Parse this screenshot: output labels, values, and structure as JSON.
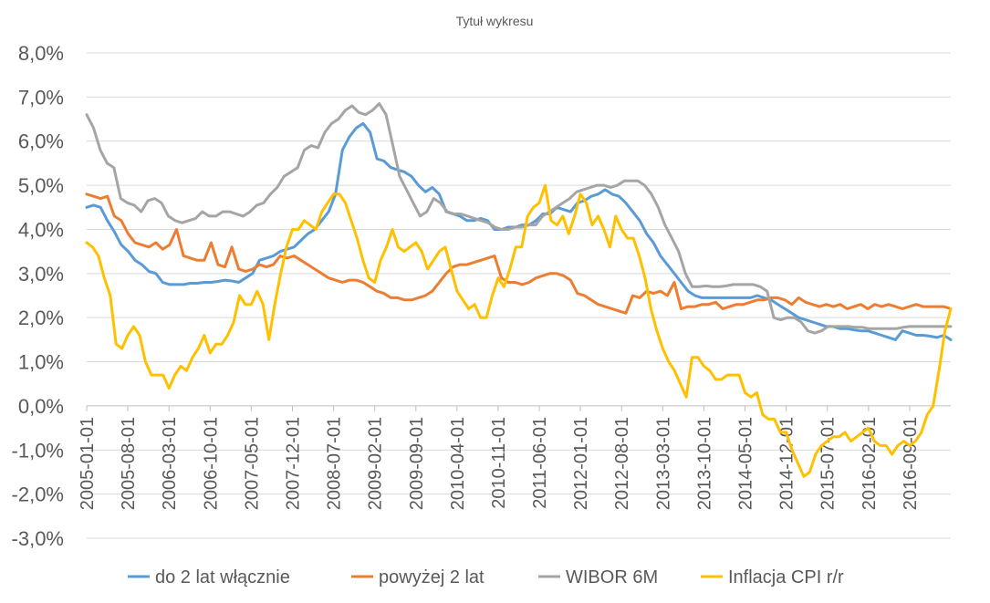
{
  "chart_data": {
    "type": "line",
    "title": "Tytuł wykresu",
    "xlabel": "",
    "ylabel": "",
    "ylim": [
      -3,
      8
    ],
    "yticks": [
      "-3,0%",
      "-2,0%",
      "-1,0%",
      "0,0%",
      "1,0%",
      "2,0%",
      "3,0%",
      "4,0%",
      "5,0%",
      "6,0%",
      "7,0%",
      "8,0%"
    ],
    "xticks": [
      "2005-01-01",
      "2005-08-01",
      "2006-03-01",
      "2006-10-01",
      "2007-05-01",
      "2007-12-01",
      "2008-07-01",
      "2009-02-01",
      "2009-09-01",
      "2010-04-01",
      "2010-11-01",
      "2011-06-01",
      "2012-01-01",
      "2012-08-01",
      "2013-03-01",
      "2013-10-01",
      "2014-05-01",
      "2014-12-01",
      "2015-07-01",
      "2016-02-01",
      "2016-09-01"
    ],
    "x_start": "2005-01",
    "x_end": "2017-04",
    "grid": true,
    "legend_position": "bottom",
    "colors": [
      "#5b9bd5",
      "#ed7d31",
      "#a5a5a5",
      "#ffc000"
    ],
    "series": [
      {
        "name": "do 2 lat włącznie",
        "values": [
          4.5,
          4.55,
          4.5,
          4.2,
          3.95,
          3.65,
          3.5,
          3.3,
          3.2,
          3.05,
          3.0,
          2.8,
          2.75,
          2.75,
          2.75,
          2.78,
          2.78,
          2.8,
          2.8,
          2.82,
          2.85,
          2.83,
          2.8,
          2.9,
          3.0,
          3.3,
          3.35,
          3.4,
          3.5,
          3.55,
          3.6,
          3.75,
          3.9,
          4.0,
          4.2,
          4.4,
          4.8,
          5.8,
          6.1,
          6.3,
          6.4,
          6.2,
          5.6,
          5.55,
          5.4,
          5.35,
          5.3,
          5.2,
          5.0,
          4.85,
          4.95,
          4.8,
          4.4,
          4.35,
          4.3,
          4.2,
          4.2,
          4.25,
          4.2,
          4.0,
          4.0,
          4.05,
          4.05,
          4.1,
          4.1,
          4.2,
          4.35,
          4.35,
          4.5,
          4.45,
          4.4,
          4.6,
          4.65,
          4.75,
          4.8,
          4.9,
          4.8,
          4.75,
          4.6,
          4.4,
          4.2,
          3.9,
          3.7,
          3.4,
          3.2,
          3.0,
          2.8,
          2.6,
          2.5,
          2.45,
          2.45,
          2.45,
          2.45,
          2.45,
          2.45,
          2.45,
          2.45,
          2.5,
          2.45,
          2.4,
          2.3,
          2.2,
          2.1,
          2.0,
          1.95,
          1.9,
          1.85,
          1.8,
          1.8,
          1.75,
          1.75,
          1.72,
          1.7,
          1.7,
          1.65,
          1.6,
          1.55,
          1.5,
          1.7,
          1.65,
          1.6,
          1.6,
          1.58,
          1.55,
          1.6,
          1.5
        ]
      },
      {
        "name": "powyżej 2 lat",
        "values": [
          4.8,
          4.75,
          4.7,
          4.75,
          4.3,
          4.2,
          3.9,
          3.7,
          3.65,
          3.6,
          3.7,
          3.55,
          3.65,
          4.0,
          3.4,
          3.35,
          3.3,
          3.3,
          3.7,
          3.2,
          3.15,
          3.6,
          3.1,
          3.05,
          3.1,
          3.2,
          3.15,
          3.2,
          3.4,
          3.35,
          3.4,
          3.3,
          3.2,
          3.1,
          3.0,
          2.9,
          2.85,
          2.8,
          2.85,
          2.85,
          2.8,
          2.7,
          2.6,
          2.55,
          2.45,
          2.45,
          2.4,
          2.4,
          2.45,
          2.5,
          2.6,
          2.8,
          3.0,
          3.15,
          3.2,
          3.2,
          3.25,
          3.3,
          3.35,
          3.4,
          2.9,
          2.8,
          2.8,
          2.75,
          2.8,
          2.9,
          2.95,
          3.0,
          3.0,
          2.95,
          2.85,
          2.55,
          2.5,
          2.4,
          2.3,
          2.25,
          2.2,
          2.15,
          2.1,
          2.5,
          2.45,
          2.6,
          2.55,
          2.6,
          2.5,
          2.8,
          2.2,
          2.25,
          2.25,
          2.3,
          2.3,
          2.35,
          2.2,
          2.25,
          2.3,
          2.3,
          2.35,
          2.4,
          2.4,
          2.45,
          2.45,
          2.4,
          2.3,
          2.45,
          2.35,
          2.3,
          2.25,
          2.3,
          2.25,
          2.3,
          2.2,
          2.25,
          2.3,
          2.2,
          2.3,
          2.25,
          2.3,
          2.25,
          2.2,
          2.25,
          2.3,
          2.25,
          2.25,
          2.25,
          2.25,
          2.2
        ]
      },
      {
        "name": "WIBOR 6M",
        "values": [
          6.6,
          6.3,
          5.8,
          5.5,
          5.4,
          4.7,
          4.6,
          4.55,
          4.4,
          4.65,
          4.7,
          4.6,
          4.3,
          4.2,
          4.15,
          4.2,
          4.25,
          4.4,
          4.3,
          4.3,
          4.4,
          4.4,
          4.35,
          4.3,
          4.4,
          4.55,
          4.6,
          4.8,
          4.95,
          5.2,
          5.3,
          5.4,
          5.8,
          5.9,
          5.85,
          6.2,
          6.4,
          6.5,
          6.7,
          6.8,
          6.65,
          6.6,
          6.7,
          6.85,
          6.6,
          5.9,
          5.2,
          4.9,
          4.6,
          4.3,
          4.4,
          4.7,
          4.6,
          4.4,
          4.35,
          4.35,
          4.3,
          4.25,
          4.2,
          4.15,
          4.05,
          4.0,
          4.0,
          4.05,
          4.05,
          4.1,
          4.1,
          4.3,
          4.4,
          4.5,
          4.6,
          4.7,
          4.85,
          4.9,
          4.95,
          5.0,
          5.0,
          4.95,
          5.0,
          5.1,
          5.1,
          5.1,
          5.0,
          4.8,
          4.5,
          4.1,
          3.8,
          3.5,
          3.0,
          2.7,
          2.7,
          2.72,
          2.7,
          2.7,
          2.72,
          2.75,
          2.75,
          2.75,
          2.75,
          2.7,
          2.6,
          2.0,
          1.95,
          2.0,
          2.0,
          1.9,
          1.7,
          1.65,
          1.7,
          1.8,
          1.8,
          1.8,
          1.8,
          1.78,
          1.78,
          1.75,
          1.75,
          1.75,
          1.75,
          1.75,
          1.78,
          1.8,
          1.8,
          1.8,
          1.8,
          1.8,
          1.8,
          1.8
        ]
      },
      {
        "name": "Inflacja CPI r/r",
        "values": [
          3.7,
          3.6,
          3.4,
          2.9,
          2.5,
          1.4,
          1.3,
          1.6,
          1.8,
          1.6,
          1.0,
          0.7,
          0.7,
          0.7,
          0.4,
          0.7,
          0.9,
          0.8,
          1.1,
          1.3,
          1.6,
          1.2,
          1.4,
          1.4,
          1.6,
          1.9,
          2.5,
          2.3,
          2.3,
          2.6,
          2.3,
          1.5,
          2.3,
          3.0,
          3.6,
          4.0,
          4.0,
          4.2,
          4.1,
          4.0,
          4.4,
          4.6,
          4.8,
          4.8,
          4.6,
          4.2,
          3.8,
          3.3,
          2.9,
          2.8,
          3.3,
          3.6,
          4.0,
          3.6,
          3.5,
          3.6,
          3.7,
          3.5,
          3.1,
          3.3,
          3.5,
          3.6,
          3.1,
          2.6,
          2.4,
          2.2,
          2.3,
          2.0,
          2.0,
          2.5,
          2.9,
          2.7,
          3.1,
          3.6,
          3.6,
          4.3,
          4.5,
          4.6,
          5.0,
          4.2,
          4.1,
          4.3,
          3.9,
          4.3,
          4.8,
          4.6,
          4.1,
          4.3,
          4.0,
          3.6,
          4.3,
          4.0,
          3.8,
          3.8,
          3.4,
          2.9,
          2.2,
          1.7,
          1.3,
          1.0,
          0.8,
          0.5,
          0.2,
          1.1,
          1.1,
          0.9,
          0.8,
          0.6,
          0.6,
          0.7,
          0.7,
          0.7,
          0.3,
          0.2,
          0.3,
          -0.2,
          -0.3,
          -0.3,
          -0.6,
          -0.6,
          -1.0,
          -1.3,
          -1.6,
          -1.5,
          -1.1,
          -0.9,
          -0.8,
          -0.7,
          -0.7,
          -0.6,
          -0.8,
          -0.7,
          -0.6,
          -0.5,
          -0.8,
          -0.9,
          -0.9,
          -1.1,
          -0.9,
          -0.8,
          -0.9,
          -0.8,
          -0.6,
          -0.2,
          0.0,
          0.8,
          1.7,
          2.2
        ]
      }
    ]
  }
}
